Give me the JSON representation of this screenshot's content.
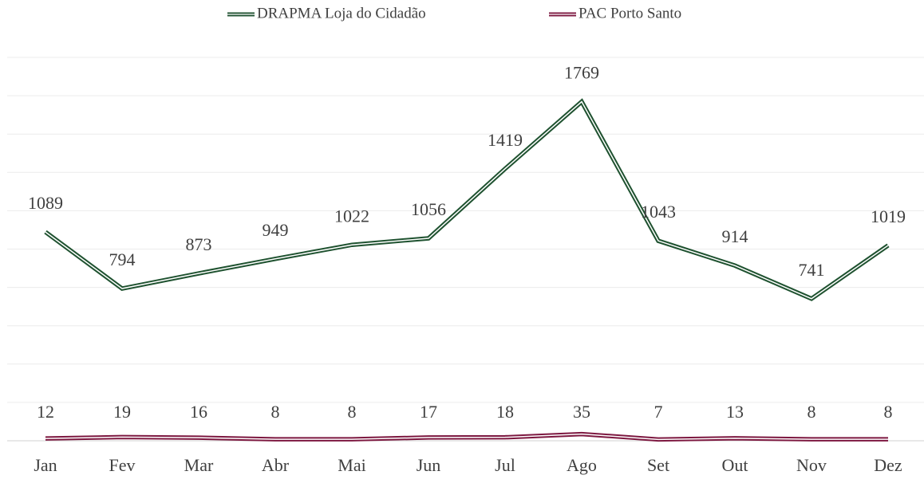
{
  "chart_data": {
    "type": "line",
    "categories": [
      "Jan",
      "Fev",
      "Mar",
      "Abr",
      "Mai",
      "Jun",
      "Jul",
      "Ago",
      "Set",
      "Out",
      "Nov",
      "Dez"
    ],
    "series": [
      {
        "name": "DRAPMA Loja do Cidadão",
        "color": "#1f5230",
        "values": [
          1089,
          794,
          873,
          949,
          1022,
          1056,
          1419,
          1769,
          1043,
          914,
          741,
          1019
        ]
      },
      {
        "name": "PAC Porto Santo",
        "color": "#7d1840",
        "values": [
          12,
          19,
          16,
          8,
          8,
          17,
          18,
          35,
          7,
          13,
          8,
          8
        ]
      }
    ],
    "ylim": [
      0,
      2000
    ],
    "yticks": [
      0,
      200,
      400,
      600,
      800,
      1000,
      1200,
      1400,
      1600,
      1800,
      2000
    ],
    "grid": true,
    "legend": "top"
  }
}
